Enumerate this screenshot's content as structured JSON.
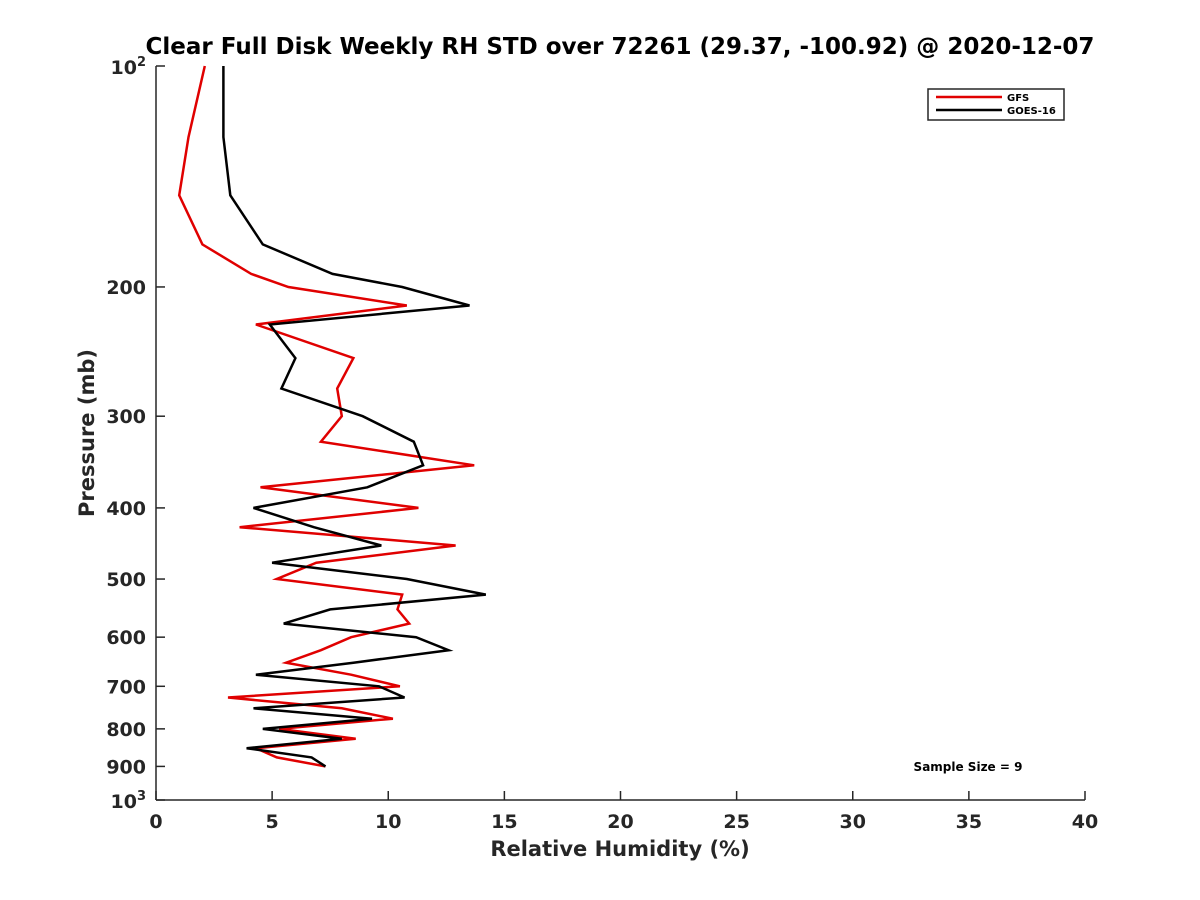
{
  "chart_data": {
    "type": "line",
    "title": "Clear Full Disk Weekly RH STD over 72261 (29.37, -100.92) @ 2020-12-07",
    "xlabel": "Relative Humidity (%)",
    "ylabel": "Pressure (mb)",
    "xlim": [
      0,
      40
    ],
    "ylim": [
      100,
      1000
    ],
    "y_scale": "log",
    "y_reversed": true,
    "x_ticks": [
      "0",
      "5",
      "10",
      "15",
      "20",
      "25",
      "30",
      "35",
      "40"
    ],
    "y_ticks": [
      {
        "value": 100,
        "base": "10",
        "exp": "2"
      },
      {
        "value": 200,
        "label": "200"
      },
      {
        "value": 300,
        "label": "300"
      },
      {
        "value": 400,
        "label": "400"
      },
      {
        "value": 500,
        "label": "500"
      },
      {
        "value": 600,
        "label": "600"
      },
      {
        "value": 700,
        "label": "700"
      },
      {
        "value": 800,
        "label": "800"
      },
      {
        "value": 900,
        "label": "900"
      },
      {
        "value": 1000,
        "base": "10",
        "exp": "3"
      }
    ],
    "legend_position": "top-right",
    "annotation": "Sample Size = 9",
    "series": [
      {
        "name": "GFS",
        "color": "#e00000",
        "points": [
          [
            2.1,
            100
          ],
          [
            1.4,
            125
          ],
          [
            1.0,
            150
          ],
          [
            2.0,
            175
          ],
          [
            4.1,
            192
          ],
          [
            5.7,
            200
          ],
          [
            10.8,
            212
          ],
          [
            4.3,
            225
          ],
          [
            8.5,
            250
          ],
          [
            7.8,
            275
          ],
          [
            8.0,
            300
          ],
          [
            7.1,
            325
          ],
          [
            13.7,
            350
          ],
          [
            4.5,
            375
          ],
          [
            11.3,
            400
          ],
          [
            3.6,
            425
          ],
          [
            12.9,
            450
          ],
          [
            6.9,
            475
          ],
          [
            5.2,
            500
          ],
          [
            10.6,
            525
          ],
          [
            10.4,
            550
          ],
          [
            10.9,
            575
          ],
          [
            8.4,
            600
          ],
          [
            7.1,
            625
          ],
          [
            5.6,
            650
          ],
          [
            8.4,
            675
          ],
          [
            10.5,
            700
          ],
          [
            3.1,
            725
          ],
          [
            8.0,
            750
          ],
          [
            10.2,
            775
          ],
          [
            5.3,
            800
          ],
          [
            8.6,
            825
          ],
          [
            4.3,
            850
          ],
          [
            5.2,
            875
          ],
          [
            7.3,
            900
          ]
        ]
      },
      {
        "name": "GOES-16",
        "color": "#000000",
        "points": [
          [
            2.9,
            100
          ],
          [
            2.9,
            125
          ],
          [
            3.2,
            150
          ],
          [
            4.6,
            175
          ],
          [
            7.6,
            192
          ],
          [
            10.6,
            200
          ],
          [
            13.5,
            212
          ],
          [
            4.9,
            225
          ],
          [
            6.0,
            250
          ],
          [
            5.4,
            275
          ],
          [
            8.9,
            300
          ],
          [
            11.1,
            325
          ],
          [
            11.5,
            350
          ],
          [
            9.1,
            375
          ],
          [
            4.2,
            400
          ],
          [
            6.8,
            425
          ],
          [
            9.7,
            450
          ],
          [
            5.0,
            475
          ],
          [
            10.8,
            500
          ],
          [
            14.2,
            525
          ],
          [
            7.5,
            550
          ],
          [
            5.5,
            575
          ],
          [
            11.2,
            600
          ],
          [
            12.6,
            625
          ],
          [
            8.5,
            650
          ],
          [
            4.3,
            675
          ],
          [
            9.6,
            700
          ],
          [
            10.7,
            725
          ],
          [
            4.2,
            750
          ],
          [
            9.3,
            775
          ],
          [
            4.6,
            800
          ],
          [
            8.0,
            825
          ],
          [
            3.9,
            850
          ],
          [
            6.7,
            875
          ],
          [
            7.3,
            900
          ]
        ]
      }
    ]
  }
}
